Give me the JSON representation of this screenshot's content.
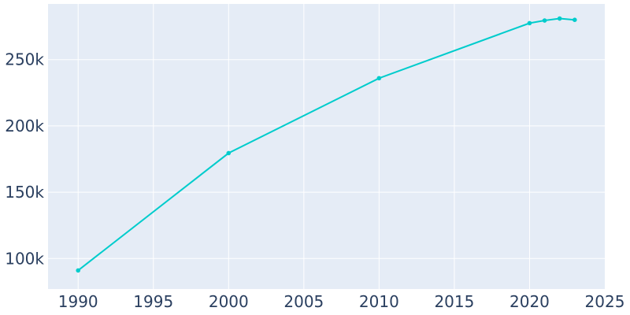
{
  "chart_data": {
    "type": "line",
    "title": "",
    "xlabel": "",
    "ylabel": "",
    "xlim": [
      1988,
      2025
    ],
    "ylim": [
      77000,
      292000
    ],
    "x_ticks": [
      1990,
      1995,
      2000,
      2005,
      2010,
      2015,
      2020,
      2025
    ],
    "x_tick_labels": [
      "1990",
      "1995",
      "2000",
      "2005",
      "2010",
      "2015",
      "2020",
      "2025"
    ],
    "y_ticks": [
      100000,
      150000,
      200000,
      250000
    ],
    "y_tick_labels": [
      "100k",
      "150k",
      "200k",
      "250k"
    ],
    "grid": true,
    "colors": {
      "plot_background": "#e5ecf6",
      "grid": "#ffffff",
      "line": "#00cccc",
      "tick_text": "#2a3f5f"
    },
    "series": [
      {
        "x": [
          1990,
          2000,
          2010,
          2020,
          2021,
          2022,
          2023
        ],
        "y": [
          91000,
          179500,
          236000,
          277500,
          279500,
          281000,
          280000
        ]
      }
    ]
  }
}
